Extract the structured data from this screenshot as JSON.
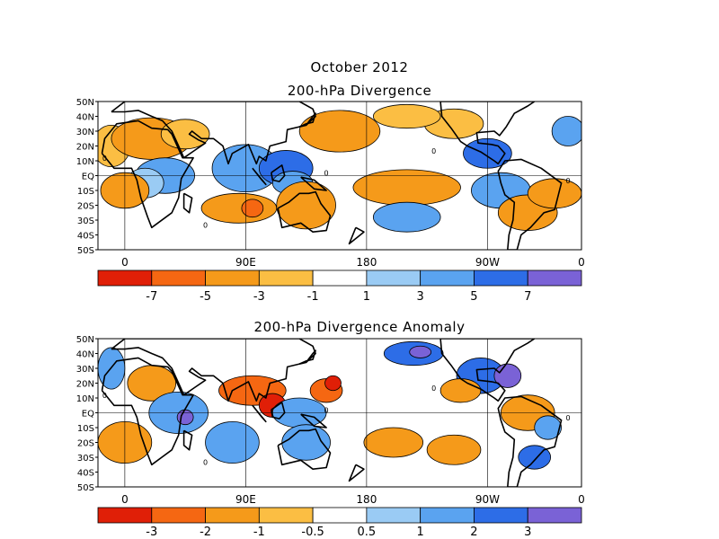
{
  "header": {
    "period": "October 2012"
  },
  "panels": [
    {
      "title": "200-hPa Divergence",
      "lat_labels": [
        "50N",
        "40N",
        "30N",
        "20N",
        "10N",
        "EQ",
        "10S",
        "20S",
        "30S",
        "40S",
        "50S"
      ],
      "lon_labels": [
        "0",
        "90E",
        "180",
        "90W",
        "0"
      ],
      "colorbar": {
        "colors": [
          "#e01f07",
          "#f56712",
          "#f59a1a",
          "#fbbe43",
          "#ffffff",
          "#9acbf4",
          "#5aa3f0",
          "#2d6de7",
          "#7a62d6"
        ],
        "labels": [
          "-7",
          "-5",
          "-3",
          "-1",
          "1",
          "3",
          "5",
          "7"
        ],
        "contour_label": "0"
      }
    },
    {
      "title": "200-hPa Divergence Anomaly",
      "lat_labels": [
        "50N",
        "40N",
        "30N",
        "20N",
        "10N",
        "EQ",
        "10S",
        "20S",
        "30S",
        "40S",
        "50S"
      ],
      "lon_labels": [
        "0",
        "90E",
        "180",
        "90W",
        "0"
      ],
      "colorbar": {
        "colors": [
          "#e01f07",
          "#f56712",
          "#f59a1a",
          "#fbbe43",
          "#ffffff",
          "#9acbf4",
          "#5aa3f0",
          "#2d6de7",
          "#7a62d6"
        ],
        "labels": [
          "-3",
          "-2",
          "-1",
          "-0.5",
          "0.5",
          "1",
          "2",
          "3"
        ],
        "contour_label": "0"
      }
    }
  ],
  "map_data": {
    "projection": "cylindrical equidistant",
    "lon_range": [
      -20,
      340
    ],
    "lat_range": [
      -50,
      50
    ],
    "fields": [
      {
        "panel": 0,
        "blobs": [
          {
            "lon": -10,
            "lat": 20,
            "rx": 14,
            "ry": 14,
            "level": "-1"
          },
          {
            "lon": 20,
            "lat": 25,
            "rx": 30,
            "ry": 14,
            "level": "-3"
          },
          {
            "lon": 45,
            "lat": 28,
            "rx": 18,
            "ry": 10,
            "level": "-1"
          },
          {
            "lon": 30,
            "lat": 0,
            "rx": 22,
            "ry": 12,
            "level": "3"
          },
          {
            "lon": 15,
            "lat": -5,
            "rx": 14,
            "ry": 10,
            "level": "1"
          },
          {
            "lon": 0,
            "lat": -10,
            "rx": 18,
            "ry": 12,
            "level": "-3"
          },
          {
            "lon": 85,
            "lat": -22,
            "rx": 28,
            "ry": 10,
            "level": "-3"
          },
          {
            "lon": 95,
            "lat": -22,
            "rx": 8,
            "ry": 6,
            "level": "-5"
          },
          {
            "lon": 90,
            "lat": 5,
            "rx": 25,
            "ry": 16,
            "level": "3"
          },
          {
            "lon": 120,
            "lat": 5,
            "rx": 20,
            "ry": 12,
            "level": "5"
          },
          {
            "lon": 125,
            "lat": -5,
            "rx": 15,
            "ry": 8,
            "level": "3"
          },
          {
            "lon": 135,
            "lat": -20,
            "rx": 22,
            "ry": 16,
            "level": "-3"
          },
          {
            "lon": 160,
            "lat": 30,
            "rx": 30,
            "ry": 14,
            "level": "-3"
          },
          {
            "lon": 210,
            "lat": -8,
            "rx": 40,
            "ry": 12,
            "level": "-3"
          },
          {
            "lon": 210,
            "lat": -28,
            "rx": 25,
            "ry": 10,
            "level": "3"
          },
          {
            "lon": 270,
            "lat": 15,
            "rx": 18,
            "ry": 10,
            "level": "5"
          },
          {
            "lon": 280,
            "lat": -10,
            "rx": 22,
            "ry": 12,
            "level": "3"
          },
          {
            "lon": 300,
            "lat": -25,
            "rx": 22,
            "ry": 12,
            "level": "-3"
          },
          {
            "lon": 245,
            "lat": 35,
            "rx": 22,
            "ry": 10,
            "level": "-1"
          },
          {
            "lon": 320,
            "lat": -12,
            "rx": 20,
            "ry": 10,
            "level": "-3"
          },
          {
            "lon": 330,
            "lat": 30,
            "rx": 12,
            "ry": 10,
            "level": "3"
          },
          {
            "lon": 210,
            "lat": 40,
            "rx": 25,
            "ry": 8,
            "level": "-1"
          }
        ]
      },
      {
        "panel": 1,
        "blobs": [
          {
            "lon": -10,
            "lat": 30,
            "rx": 10,
            "ry": 14,
            "level": "1"
          },
          {
            "lon": 20,
            "lat": 20,
            "rx": 18,
            "ry": 12,
            "level": "-1"
          },
          {
            "lon": 40,
            "lat": 0,
            "rx": 22,
            "ry": 14,
            "level": "1"
          },
          {
            "lon": 45,
            "lat": -3,
            "rx": 6,
            "ry": 5,
            "level": "3"
          },
          {
            "lon": 0,
            "lat": -20,
            "rx": 20,
            "ry": 14,
            "level": "-1"
          },
          {
            "lon": 95,
            "lat": 15,
            "rx": 25,
            "ry": 10,
            "level": "-2"
          },
          {
            "lon": 110,
            "lat": 5,
            "rx": 10,
            "ry": 8,
            "level": "-3"
          },
          {
            "lon": 130,
            "lat": 0,
            "rx": 20,
            "ry": 10,
            "level": "1"
          },
          {
            "lon": 150,
            "lat": 15,
            "rx": 12,
            "ry": 8,
            "level": "-2"
          },
          {
            "lon": 155,
            "lat": 20,
            "rx": 6,
            "ry": 5,
            "level": "-3"
          },
          {
            "lon": 80,
            "lat": -20,
            "rx": 20,
            "ry": 14,
            "level": "1"
          },
          {
            "lon": 135,
            "lat": -20,
            "rx": 18,
            "ry": 12,
            "level": "1"
          },
          {
            "lon": 215,
            "lat": 40,
            "rx": 22,
            "ry": 8,
            "level": "2"
          },
          {
            "lon": 220,
            "lat": 41,
            "rx": 8,
            "ry": 4,
            "level": "3"
          },
          {
            "lon": 200,
            "lat": -20,
            "rx": 22,
            "ry": 10,
            "level": "-1"
          },
          {
            "lon": 265,
            "lat": 25,
            "rx": 18,
            "ry": 12,
            "level": "2"
          },
          {
            "lon": 285,
            "lat": 25,
            "rx": 10,
            "ry": 8,
            "level": "3"
          },
          {
            "lon": 300,
            "lat": 0,
            "rx": 20,
            "ry": 12,
            "level": "-1"
          },
          {
            "lon": 315,
            "lat": -10,
            "rx": 10,
            "ry": 8,
            "level": "1"
          },
          {
            "lon": 305,
            "lat": -30,
            "rx": 12,
            "ry": 8,
            "level": "2"
          },
          {
            "lon": 245,
            "lat": -25,
            "rx": 20,
            "ry": 10,
            "level": "-1"
          },
          {
            "lon": 250,
            "lat": 15,
            "rx": 15,
            "ry": 8,
            "level": "-1"
          }
        ]
      }
    ]
  }
}
